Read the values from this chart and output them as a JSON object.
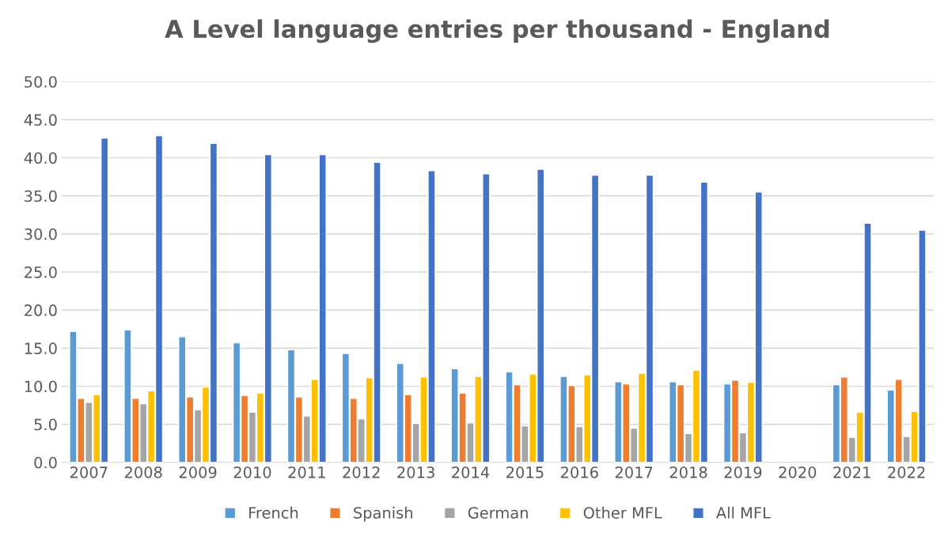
{
  "chart_data": {
    "type": "bar",
    "title": "A Level language entries per thousand - England",
    "categories": [
      "2007",
      "2008",
      "2009",
      "2010",
      "2011",
      "2012",
      "2013",
      "2014",
      "2015",
      "2016",
      "2017",
      "2018",
      "2019",
      "2020",
      "2021",
      "2022"
    ],
    "series": [
      {
        "name": "French",
        "color": "#5b9bd5",
        "values": [
          17.2,
          17.4,
          16.5,
          15.7,
          14.8,
          14.3,
          13.0,
          12.3,
          11.9,
          11.3,
          10.6,
          10.6,
          10.3,
          null,
          10.2,
          9.5
        ]
      },
      {
        "name": "Spanish",
        "color": "#ed7d31",
        "values": [
          8.4,
          8.4,
          8.6,
          8.8,
          8.6,
          8.4,
          8.9,
          9.1,
          10.2,
          10.1,
          10.3,
          10.2,
          10.8,
          null,
          11.2,
          10.9
        ]
      },
      {
        "name": "German",
        "color": "#a5a5a5",
        "values": [
          7.9,
          7.7,
          6.9,
          6.6,
          6.1,
          5.7,
          5.1,
          5.2,
          4.8,
          4.7,
          4.5,
          3.8,
          3.9,
          null,
          3.3,
          3.4
        ]
      },
      {
        "name": "Other MFL",
        "color": "#ffc000",
        "values": [
          8.9,
          9.4,
          9.9,
          9.1,
          10.9,
          11.1,
          11.2,
          11.3,
          11.6,
          11.5,
          11.7,
          12.1,
          10.5,
          null,
          6.6,
          6.7
        ]
      },
      {
        "name": "All MFL",
        "color": "#4472c4",
        "values": [
          42.6,
          42.9,
          41.9,
          40.4,
          40.4,
          39.4,
          38.3,
          37.9,
          38.5,
          37.7,
          37.7,
          36.8,
          35.5,
          null,
          31.4,
          30.5
        ]
      }
    ],
    "ylim": [
      0,
      50
    ],
    "yticks": [
      {
        "value": 0,
        "label": "0.0"
      },
      {
        "value": 5,
        "label": "5.0"
      },
      {
        "value": 10,
        "label": "10.0"
      },
      {
        "value": 15,
        "label": "15.0"
      },
      {
        "value": 20,
        "label": "20.0"
      },
      {
        "value": 25,
        "label": "25.0"
      },
      {
        "value": 30,
        "label": "30.0"
      },
      {
        "value": 35,
        "label": "35.0"
      },
      {
        "value": 40,
        "label": "40.0"
      },
      {
        "value": 45,
        "label": "45.0"
      },
      {
        "value": 50,
        "label": "50.0"
      }
    ],
    "grid": "y",
    "legend": "bottom"
  }
}
